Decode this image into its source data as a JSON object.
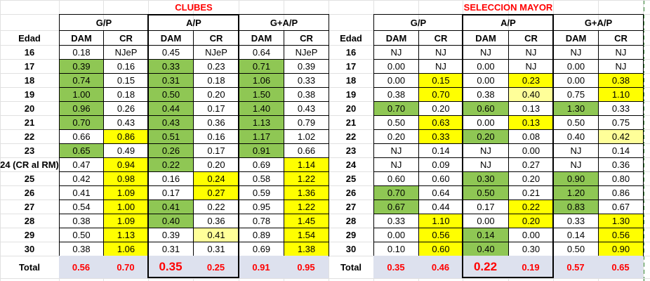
{
  "colors": {
    "green": "#8fc754",
    "yellow": "#ffff00",
    "light_yellow": "#ffff99",
    "total_bg": "#dde1ee",
    "title_red": "#ff0000"
  },
  "tables": [
    {
      "title": "CLUBES",
      "groups": [
        "G/P",
        "A/P",
        "G+A/P"
      ],
      "subheaders": [
        "DAM",
        "CR",
        "DAM",
        "CR",
        "DAM",
        "CR"
      ],
      "edad_label": "Edad",
      "rows": [
        {
          "label": "16",
          "cells": [
            {
              "v": "0.18"
            },
            {
              "v": "NJeP"
            },
            {
              "v": "0.45"
            },
            {
              "v": "NJeP"
            },
            {
              "v": "0.64"
            },
            {
              "v": "NJeP"
            }
          ]
        },
        {
          "label": "17",
          "cells": [
            {
              "v": "0.39",
              "c": "green"
            },
            {
              "v": "0.16"
            },
            {
              "v": "0.33",
              "c": "green"
            },
            {
              "v": "0.23"
            },
            {
              "v": "0.71",
              "c": "green"
            },
            {
              "v": "0.39"
            }
          ]
        },
        {
          "label": "18",
          "cells": [
            {
              "v": "0.74",
              "c": "green"
            },
            {
              "v": "0.15"
            },
            {
              "v": "0.31",
              "c": "green"
            },
            {
              "v": "0.18"
            },
            {
              "v": "1.06",
              "c": "green"
            },
            {
              "v": "0.33"
            }
          ]
        },
        {
          "label": "19",
          "cells": [
            {
              "v": "1.00",
              "c": "green"
            },
            {
              "v": "0.18"
            },
            {
              "v": "0.50",
              "c": "green"
            },
            {
              "v": "0.20"
            },
            {
              "v": "1.50",
              "c": "green"
            },
            {
              "v": "0.38"
            }
          ]
        },
        {
          "label": "20",
          "cells": [
            {
              "v": "0.96",
              "c": "green"
            },
            {
              "v": "0.26"
            },
            {
              "v": "0.44",
              "c": "green"
            },
            {
              "v": "0.17"
            },
            {
              "v": "1.40",
              "c": "green"
            },
            {
              "v": "0.43"
            }
          ]
        },
        {
          "label": "21",
          "cells": [
            {
              "v": "0.70",
              "c": "green"
            },
            {
              "v": "0.43"
            },
            {
              "v": "0.43",
              "c": "green"
            },
            {
              "v": "0.36"
            },
            {
              "v": "1.13",
              "c": "green"
            },
            {
              "v": "0.79"
            }
          ]
        },
        {
          "label": "22",
          "cells": [
            {
              "v": "0.66"
            },
            {
              "v": "0.86",
              "c": "yellow"
            },
            {
              "v": "0.51",
              "c": "green"
            },
            {
              "v": "0.16"
            },
            {
              "v": "1.17",
              "c": "green"
            },
            {
              "v": "1.02"
            }
          ]
        },
        {
          "label": "23",
          "cells": [
            {
              "v": "0.65",
              "c": "green"
            },
            {
              "v": "0.49"
            },
            {
              "v": "0.26",
              "c": "green"
            },
            {
              "v": "0.17"
            },
            {
              "v": "0.91",
              "c": "green"
            },
            {
              "v": "0.66"
            }
          ]
        },
        {
          "label": "24 (CR al RM)",
          "cells": [
            {
              "v": "0.47"
            },
            {
              "v": "0.94",
              "c": "yellow"
            },
            {
              "v": "0.22",
              "c": "green"
            },
            {
              "v": "0.20"
            },
            {
              "v": "0.69"
            },
            {
              "v": "1.14",
              "c": "yellow"
            }
          ]
        },
        {
          "label": "25",
          "cells": [
            {
              "v": "0.42"
            },
            {
              "v": "0.98",
              "c": "yellow"
            },
            {
              "v": "0.16"
            },
            {
              "v": "0.24",
              "c": "yellow"
            },
            {
              "v": "0.58"
            },
            {
              "v": "1.22",
              "c": "yellow"
            }
          ]
        },
        {
          "label": "26",
          "cells": [
            {
              "v": "0.41"
            },
            {
              "v": "1.09",
              "c": "yellow"
            },
            {
              "v": "0.17"
            },
            {
              "v": "0.27",
              "c": "yellow"
            },
            {
              "v": "0.59"
            },
            {
              "v": "1.36",
              "c": "yellow"
            }
          ]
        },
        {
          "label": "27",
          "cells": [
            {
              "v": "0.54"
            },
            {
              "v": "1.00",
              "c": "yellow"
            },
            {
              "v": "0.41",
              "c": "green"
            },
            {
              "v": "0.22"
            },
            {
              "v": "0.95"
            },
            {
              "v": "1.22",
              "c": "yellow"
            }
          ]
        },
        {
          "label": "28",
          "cells": [
            {
              "v": "0.38"
            },
            {
              "v": "1.09",
              "c": "yellow"
            },
            {
              "v": "0.40",
              "c": "green"
            },
            {
              "v": "0.36"
            },
            {
              "v": "0.78"
            },
            {
              "v": "1.45",
              "c": "yellow"
            }
          ]
        },
        {
          "label": "29",
          "cells": [
            {
              "v": "0.50"
            },
            {
              "v": "1.13",
              "c": "yellow"
            },
            {
              "v": "0.39"
            },
            {
              "v": "0.41",
              "c": "lyellow"
            },
            {
              "v": "0.89"
            },
            {
              "v": "1.54",
              "c": "yellow"
            }
          ]
        },
        {
          "label": "30",
          "cells": [
            {
              "v": "0.38"
            },
            {
              "v": "1.06",
              "c": "yellow"
            },
            {
              "v": "0.31"
            },
            {
              "v": "0.31"
            },
            {
              "v": "0.69"
            },
            {
              "v": "1.38",
              "c": "yellow"
            }
          ]
        }
      ],
      "total": {
        "label": "Total",
        "values": [
          "0.56",
          "0.70",
          "0.35",
          "0.25",
          "0.91",
          "0.95"
        ]
      }
    },
    {
      "title": "SELECCION MAYOR",
      "groups": [
        "G/P",
        "A/P",
        "G+A/P"
      ],
      "subheaders": [
        "DAM",
        "CR",
        "DAM",
        "CR",
        "DAM",
        "CR"
      ],
      "edad_label": "Edad",
      "rows": [
        {
          "label": "16",
          "cells": [
            {
              "v": "NJ"
            },
            {
              "v": "NJ"
            },
            {
              "v": "NJ"
            },
            {
              "v": "NJ"
            },
            {
              "v": "NJ"
            },
            {
              "v": "NJ"
            }
          ]
        },
        {
          "label": "17",
          "cells": [
            {
              "v": "0.00"
            },
            {
              "v": "NJ"
            },
            {
              "v": "0.00"
            },
            {
              "v": "NJ"
            },
            {
              "v": "0.00"
            },
            {
              "v": "NJ"
            }
          ]
        },
        {
          "label": "18",
          "cells": [
            {
              "v": "0.00"
            },
            {
              "v": "0.15",
              "c": "yellow"
            },
            {
              "v": "0.00"
            },
            {
              "v": "0.23",
              "c": "yellow"
            },
            {
              "v": "0.00"
            },
            {
              "v": "0.38",
              "c": "yellow"
            }
          ]
        },
        {
          "label": "19",
          "cells": [
            {
              "v": "0.38"
            },
            {
              "v": "0.70",
              "c": "yellow"
            },
            {
              "v": "0.38"
            },
            {
              "v": "0.40",
              "c": "lyellow"
            },
            {
              "v": "0.75"
            },
            {
              "v": "1.10",
              "c": "yellow"
            }
          ]
        },
        {
          "label": "20",
          "cells": [
            {
              "v": "0.70",
              "c": "green"
            },
            {
              "v": "0.20"
            },
            {
              "v": "0.60",
              "c": "green"
            },
            {
              "v": "0.13"
            },
            {
              "v": "1.30",
              "c": "green"
            },
            {
              "v": "0.33"
            }
          ]
        },
        {
          "label": "21",
          "cells": [
            {
              "v": "0.50"
            },
            {
              "v": "0.63",
              "c": "yellow"
            },
            {
              "v": "0.00"
            },
            {
              "v": "0.13",
              "c": "yellow"
            },
            {
              "v": "0.50"
            },
            {
              "v": "0.75"
            }
          ]
        },
        {
          "label": "22",
          "cells": [
            {
              "v": "0.20"
            },
            {
              "v": "0.33",
              "c": "yellow"
            },
            {
              "v": "0.20",
              "c": "green"
            },
            {
              "v": "0.08"
            },
            {
              "v": "0.40"
            },
            {
              "v": "0.42",
              "c": "lyellow"
            }
          ]
        },
        {
          "label": "23",
          "cells": [
            {
              "v": "NJ"
            },
            {
              "v": "0.14"
            },
            {
              "v": "NJ"
            },
            {
              "v": "0.00"
            },
            {
              "v": "NJ"
            },
            {
              "v": "0.14"
            }
          ]
        },
        {
          "label": "24",
          "cells": [
            {
              "v": "NJ"
            },
            {
              "v": "0.09"
            },
            {
              "v": "NJ"
            },
            {
              "v": "0.27"
            },
            {
              "v": "NJ"
            },
            {
              "v": "0.36"
            }
          ]
        },
        {
          "label": "25",
          "cells": [
            {
              "v": "0.60"
            },
            {
              "v": "0.60"
            },
            {
              "v": "0.30",
              "c": "green"
            },
            {
              "v": "0.20"
            },
            {
              "v": "0.90",
              "c": "green"
            },
            {
              "v": "0.80"
            }
          ]
        },
        {
          "label": "26",
          "cells": [
            {
              "v": "0.70",
              "c": "green"
            },
            {
              "v": "0.64"
            },
            {
              "v": "0.50",
              "c": "green"
            },
            {
              "v": "0.21"
            },
            {
              "v": "1.20",
              "c": "green"
            },
            {
              "v": "0.86"
            }
          ]
        },
        {
          "label": "27",
          "cells": [
            {
              "v": "0.67",
              "c": "green"
            },
            {
              "v": "0.44"
            },
            {
              "v": "0.17"
            },
            {
              "v": "0.22",
              "c": "yellow"
            },
            {
              "v": "0.83",
              "c": "green"
            },
            {
              "v": "0.67"
            }
          ]
        },
        {
          "label": "28",
          "cells": [
            {
              "v": "0.33"
            },
            {
              "v": "1.10",
              "c": "yellow"
            },
            {
              "v": "0.00"
            },
            {
              "v": "0.20",
              "c": "yellow"
            },
            {
              "v": "0.33"
            },
            {
              "v": "1.30",
              "c": "yellow"
            }
          ]
        },
        {
          "label": "29",
          "cells": [
            {
              "v": "0.00"
            },
            {
              "v": "0.56",
              "c": "yellow"
            },
            {
              "v": "0.14",
              "c": "green"
            },
            {
              "v": "0.00"
            },
            {
              "v": "0.14"
            },
            {
              "v": "0.56",
              "c": "yellow"
            }
          ]
        },
        {
          "label": "30",
          "cells": [
            {
              "v": "0.10"
            },
            {
              "v": "0.60",
              "c": "yellow"
            },
            {
              "v": "0.40",
              "c": "green"
            },
            {
              "v": "0.30"
            },
            {
              "v": "0.50"
            },
            {
              "v": "0.90",
              "c": "yellow"
            }
          ]
        }
      ],
      "total": {
        "label": "Total",
        "values": [
          "0.35",
          "0.46",
          "0.22",
          "0.19",
          "0.57",
          "0.65"
        ]
      }
    }
  ]
}
